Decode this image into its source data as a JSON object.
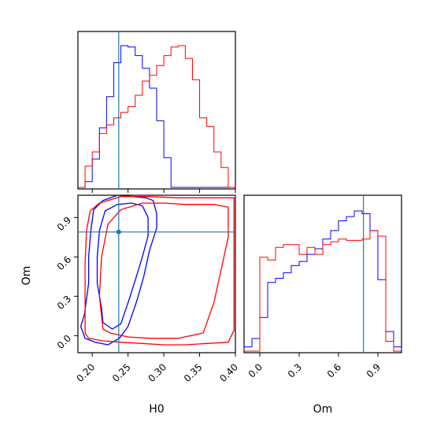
{
  "chart_data": {
    "type": "corner",
    "parameters": [
      "H0",
      "Om"
    ],
    "truths": {
      "H0": 0.237,
      "Om": 0.79
    },
    "colors": {
      "series_a": "#0000ff",
      "series_b": "#ff0000",
      "truth": "#1f77b4"
    },
    "grid": false,
    "panels": [
      {
        "id": "hist-H0",
        "type": "histogram",
        "parameter": "H0",
        "xlim": [
          0.18,
          0.4
        ],
        "bin_edges": [
          0.18,
          0.19,
          0.2,
          0.21,
          0.22,
          0.23,
          0.24,
          0.25,
          0.26,
          0.27,
          0.28,
          0.29,
          0.3,
          0.31,
          0.32,
          0.33,
          0.34,
          0.35,
          0.36,
          0.37,
          0.38,
          0.39,
          0.4
        ],
        "y_axis_labels": false,
        "series": [
          {
            "color": "blue",
            "counts": [
              0.0,
              0.04,
              0.2,
              0.42,
              0.64,
              0.88,
              1.0,
              0.99,
              0.93,
              0.84,
              0.7,
              0.47,
              0.21,
              0.0,
              0.0,
              0.0,
              0.0,
              0.0,
              0.0,
              0.0,
              0.0,
              0.0
            ]
          },
          {
            "color": "red",
            "counts": [
              0.0,
              0.15,
              0.25,
              0.38,
              0.44,
              0.49,
              0.53,
              0.57,
              0.65,
              0.75,
              0.79,
              0.86,
              0.93,
              0.99,
              1.0,
              0.91,
              0.76,
              0.49,
              0.43,
              0.25,
              0.14,
              0.0
            ]
          }
        ]
      },
      {
        "id": "contour-H0-Om",
        "type": "contour",
        "xparam": "H0",
        "yparam": "Om",
        "xlim": [
          0.18,
          0.4
        ],
        "ylim": [
          -0.13,
          1.07
        ],
        "xticks": [
          "0.20",
          "0.25",
          "0.30",
          "0.35",
          "0.40"
        ],
        "yticks": [
          "0.0",
          "0.3",
          "0.6",
          "0.9"
        ],
        "xlabel": "H0",
        "ylabel": "Om",
        "contours": [
          {
            "color": "blue",
            "level": "outer",
            "points": [
              [
                0.184,
                0.07
              ],
              [
                0.189,
                0.16
              ],
              [
                0.195,
                0.4
              ],
              [
                0.195,
                0.6
              ],
              [
                0.198,
                0.8
              ],
              [
                0.202,
                0.96
              ],
              [
                0.215,
                1.03
              ],
              [
                0.235,
                1.07
              ],
              [
                0.257,
                1.06
              ],
              [
                0.275,
                1.05
              ],
              [
                0.285,
                1.03
              ],
              [
                0.29,
                0.93
              ],
              [
                0.29,
                0.82
              ],
              [
                0.28,
                0.65
              ],
              [
                0.272,
                0.45
              ],
              [
                0.262,
                0.26
              ],
              [
                0.25,
                0.07
              ],
              [
                0.238,
                -0.02
              ],
              [
                0.222,
                -0.07
              ],
              [
                0.204,
                -0.05
              ],
              [
                0.19,
                -0.02
              ],
              [
                0.184,
                0.07
              ]
            ]
          },
          {
            "color": "blue",
            "level": "inner",
            "points": [
              [
                0.213,
                0.21
              ],
              [
                0.207,
                0.4
              ],
              [
                0.207,
                0.6
              ],
              [
                0.21,
                0.8
              ],
              [
                0.218,
                0.95
              ],
              [
                0.235,
                1.0
              ],
              [
                0.255,
                1.01
              ],
              [
                0.27,
                0.99
              ],
              [
                0.278,
                0.9
              ],
              [
                0.278,
                0.76
              ],
              [
                0.27,
                0.6
              ],
              [
                0.26,
                0.42
              ],
              [
                0.25,
                0.25
              ],
              [
                0.24,
                0.09
              ],
              [
                0.228,
                0.05
              ],
              [
                0.215,
                0.1
              ],
              [
                0.213,
                0.21
              ]
            ]
          },
          {
            "color": "red",
            "level": "outer",
            "points": [
              [
                0.19,
                0.02
              ],
              [
                0.19,
                0.3
              ],
              [
                0.19,
                0.55
              ],
              [
                0.192,
                0.8
              ],
              [
                0.197,
                0.95
              ],
              [
                0.21,
                1.01
              ],
              [
                0.24,
                1.06
              ],
              [
                0.28,
                1.06
              ],
              [
                0.32,
                1.05
              ],
              [
                0.36,
                1.05
              ],
              [
                0.398,
                1.05
              ],
              [
                0.398,
                0.8
              ],
              [
                0.398,
                0.55
              ],
              [
                0.398,
                0.3
              ],
              [
                0.398,
                0.04
              ],
              [
                0.39,
                -0.05
              ],
              [
                0.36,
                -0.06
              ],
              [
                0.33,
                -0.07
              ],
              [
                0.3,
                -0.07
              ],
              [
                0.27,
                -0.06
              ],
              [
                0.24,
                -0.05
              ],
              [
                0.215,
                -0.04
              ],
              [
                0.195,
                -0.02
              ],
              [
                0.19,
                0.02
              ]
            ]
          },
          {
            "color": "red",
            "level": "inner",
            "points": [
              [
                0.215,
                0.05
              ],
              [
                0.21,
                0.3
              ],
              [
                0.213,
                0.6
              ],
              [
                0.222,
                0.85
              ],
              [
                0.24,
                0.96
              ],
              [
                0.27,
                1.01
              ],
              [
                0.3,
                1.01
              ],
              [
                0.33,
                1.0
              ],
              [
                0.37,
                1.0
              ],
              [
                0.39,
                0.98
              ],
              [
                0.39,
                0.75
              ],
              [
                0.38,
                0.5
              ],
              [
                0.37,
                0.25
              ],
              [
                0.355,
                0.02
              ],
              [
                0.32,
                -0.02
              ],
              [
                0.28,
                -0.02
              ],
              [
                0.25,
                -0.01
              ],
              [
                0.225,
                0.02
              ],
              [
                0.215,
                0.05
              ]
            ]
          }
        ]
      },
      {
        "id": "hist-Om",
        "type": "histogram",
        "parameter": "Om",
        "xlim": [
          -0.12,
          1.08
        ],
        "xticks": [
          "0.0",
          "0.3",
          "0.6",
          "0.9"
        ],
        "xlabel": "Om",
        "y_axis_labels": false,
        "bin_edges": [
          -0.12,
          -0.06,
          0.0,
          0.06,
          0.12,
          0.18,
          0.24,
          0.3,
          0.36,
          0.42,
          0.48,
          0.54,
          0.6,
          0.66,
          0.72,
          0.78,
          0.84,
          0.9,
          0.96,
          1.02,
          1.08
        ],
        "series": [
          {
            "color": "blue",
            "counts": [
              0.03,
              0.09,
              0.24,
              0.49,
              0.52,
              0.56,
              0.61,
              0.64,
              0.69,
              0.73,
              0.8,
              0.86,
              0.93,
              0.96,
              1.0,
              0.98,
              0.86,
              0.51,
              0.14,
              0.03
            ]
          },
          {
            "color": "red",
            "counts": [
              0.0,
              0.0,
              0.67,
              0.65,
              0.74,
              0.76,
              0.76,
              0.69,
              0.74,
              0.69,
              0.76,
              0.78,
              0.8,
              0.79,
              0.79,
              0.8,
              0.86,
              0.82,
              0.07,
              0.0
            ]
          }
        ]
      }
    ]
  }
}
